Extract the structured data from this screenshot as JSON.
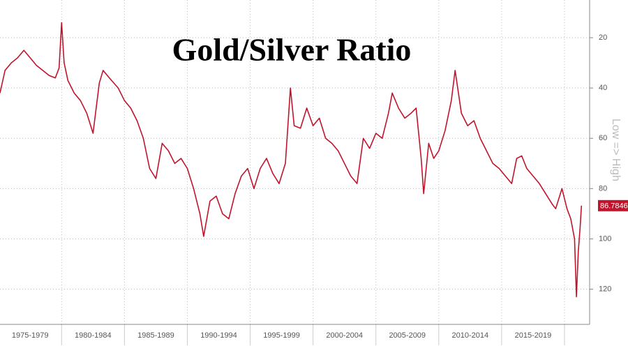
{
  "chart_data": {
    "type": "line",
    "title": "Gold/Silver Ratio",
    "y_axis_label": "Low => High",
    "color": "#c0142c",
    "y_axis_side": "right",
    "y_inverted": true,
    "grid": true,
    "x": [
      1975.1,
      1975.5,
      1976,
      1976.5,
      1977,
      1977.5,
      1978,
      1978.5,
      1979,
      1979.5,
      1979.8,
      1980.0,
      1980.2,
      1980.5,
      1981,
      1981.5,
      1982,
      1982.5,
      1983,
      1983.3,
      1983.8,
      1984.5,
      1985,
      1985.5,
      1986,
      1986.5,
      1987,
      1987.5,
      1988,
      1988.5,
      1989,
      1989.5,
      1990,
      1990.5,
      1991,
      1991.3,
      1991.8,
      1992.3,
      1992.8,
      1993.3,
      1993.8,
      1994.3,
      1994.8,
      1995.3,
      1995.8,
      1996.3,
      1996.8,
      1997.3,
      1997.8,
      1998.2,
      1998.5,
      1999,
      1999.5,
      2000,
      2000.5,
      2001,
      2001.5,
      2002,
      2002.5,
      2003,
      2003.5,
      2004,
      2004.5,
      2005,
      2005.5,
      2006,
      2006.3,
      2006.8,
      2007.3,
      2007.8,
      2008.2,
      2008.6,
      2008.8,
      2009.2,
      2009.6,
      2010,
      2010.5,
      2011.0,
      2011.3,
      2011.8,
      2012.3,
      2012.8,
      2013.3,
      2013.8,
      2014.3,
      2014.8,
      2015.3,
      2015.8,
      2016.2,
      2016.6,
      2017,
      2017.5,
      2018,
      2018.5,
      2019,
      2019.3,
      2019.8,
      2020.2,
      2020.5,
      2020.8,
      2020.95,
      2021.1,
      2021.25,
      2021.35
    ],
    "values": [
      42,
      33,
      30,
      28,
      25,
      28,
      31,
      33,
      35,
      36,
      32,
      14,
      30,
      37,
      42,
      45,
      50,
      58,
      38,
      33,
      36,
      40,
      45,
      48,
      53,
      60,
      72,
      76,
      62,
      65,
      70,
      68,
      72,
      80,
      90,
      99,
      85,
      83,
      90,
      92,
      82,
      75,
      72,
      80,
      72,
      68,
      74,
      78,
      70,
      40,
      55,
      56,
      48,
      55,
      52,
      60,
      62,
      65,
      70,
      75,
      78,
      60,
      64,
      58,
      60,
      50,
      42,
      48,
      52,
      50,
      48,
      68,
      82,
      62,
      68,
      65,
      57,
      45,
      33,
      50,
      55,
      53,
      60,
      65,
      70,
      72,
      75,
      78,
      68,
      67,
      72,
      75,
      78,
      82,
      86,
      88,
      80,
      88,
      92,
      100,
      123,
      105,
      95,
      86.7846
    ],
    "xlim": [
      1975.1,
      2022
    ],
    "ylim": [
      5,
      134
    ],
    "yticks": [
      20,
      40,
      60,
      80,
      100,
      120
    ],
    "xticks": [
      {
        "value": 1975,
        "label": "1975-1979"
      },
      {
        "value": 1980,
        "label": "1980-1984"
      },
      {
        "value": 1985,
        "label": "1985-1989"
      },
      {
        "value": 1990,
        "label": "1990-1994"
      },
      {
        "value": 1995,
        "label": "1995-1999"
      },
      {
        "value": 2000,
        "label": "2000-2004"
      },
      {
        "value": 2005,
        "label": "2005-2009"
      },
      {
        "value": 2010,
        "label": "2010-2014"
      },
      {
        "value": 2015,
        "label": "2015-2019"
      },
      {
        "value": 2020,
        "label": null
      }
    ]
  }
}
